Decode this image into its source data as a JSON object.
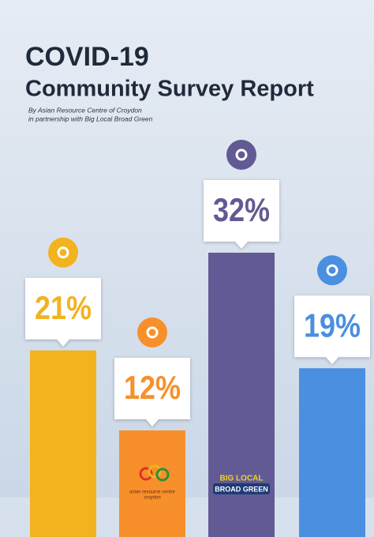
{
  "chart_data": {
    "type": "bar",
    "title": "COVID-19",
    "subtitle": "Community Survey Report",
    "byline": [
      "By Asian Resource Centre of Croydon",
      "in partnership with Big Local Broad Green"
    ],
    "values": [
      21,
      12,
      32,
      19
    ],
    "value_labels": [
      "21%",
      "12%",
      "32%",
      "19%"
    ],
    "colors": [
      "#f2b31f",
      "#f7902a",
      "#625a94",
      "#4a8fe0"
    ],
    "ylim": [
      0,
      40
    ],
    "logos": [
      "asian resource centre",
      "croydon",
      "BIG LOCAL",
      "BROAD GREEN"
    ]
  }
}
